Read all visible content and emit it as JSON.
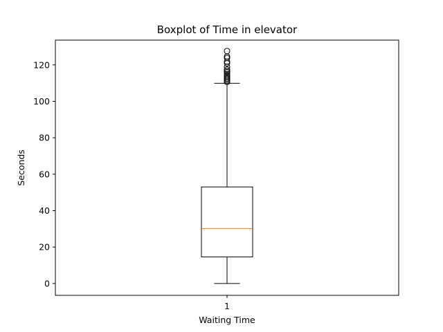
{
  "chart_data": {
    "type": "boxplot",
    "title": "Boxplot of Time in elevator",
    "xlabel": "Waiting Time",
    "ylabel": "Seconds",
    "categories": [
      "1"
    ],
    "ylim": [
      -6.5,
      133.6
    ],
    "yticks": [
      0,
      20,
      40,
      60,
      80,
      100,
      120
    ],
    "series": [
      {
        "whisker_low": 0,
        "q1": 14.6,
        "median": 30.2,
        "q3": 53.0,
        "whisker_high": 109.9,
        "outliers": [
          110.6,
          111.3,
          112.0,
          112.6,
          113.4,
          114.2,
          115.0,
          115.9,
          116.7,
          117.5,
          119.0,
          120.9,
          121.8,
          123.8,
          124.6,
          127.6
        ]
      }
    ],
    "colors": {
      "median": "#ff7f0e",
      "box": "#000000",
      "axes": "#000000"
    },
    "grid": false
  }
}
